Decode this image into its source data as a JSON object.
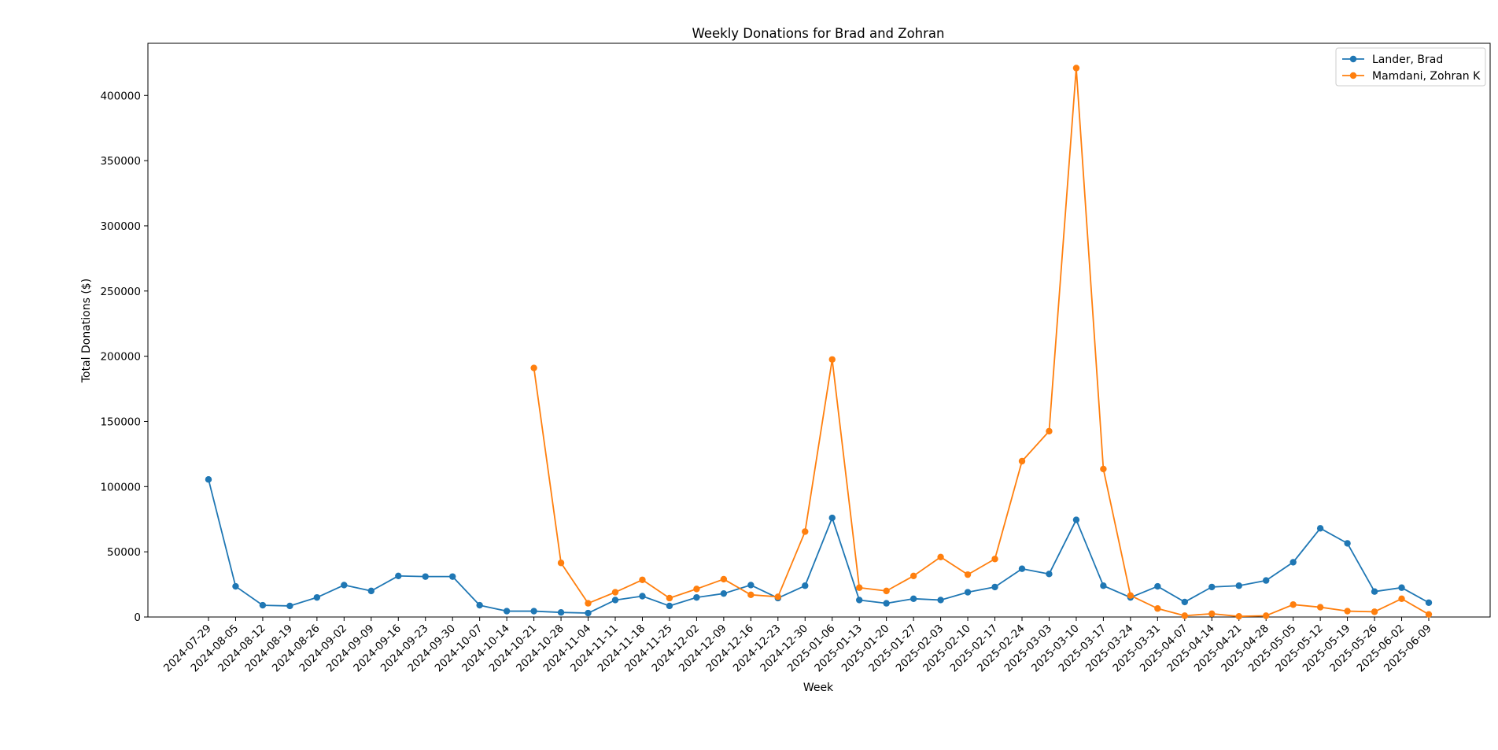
{
  "chart_data": {
    "type": "line",
    "title": "Weekly Donations for Brad and Zohran",
    "xlabel": "Week",
    "ylabel": "Total Donations ($)",
    "ylim": [
      0,
      440000
    ],
    "y_ticks": [
      0,
      50000,
      100000,
      150000,
      200000,
      250000,
      300000,
      350000,
      400000
    ],
    "grid": false,
    "legend_position": "top-right",
    "categories": [
      "2024-07-29",
      "2024-08-05",
      "2024-08-12",
      "2024-08-19",
      "2024-08-26",
      "2024-09-02",
      "2024-09-09",
      "2024-09-16",
      "2024-09-23",
      "2024-09-30",
      "2024-10-07",
      "2024-10-14",
      "2024-10-21",
      "2024-10-28",
      "2024-11-04",
      "2024-11-11",
      "2024-11-18",
      "2024-11-25",
      "2024-12-02",
      "2024-12-09",
      "2024-12-16",
      "2024-12-23",
      "2024-12-30",
      "2025-01-06",
      "2025-01-13",
      "2025-01-20",
      "2025-01-27",
      "2025-02-03",
      "2025-02-10",
      "2025-02-17",
      "2025-02-24",
      "2025-03-03",
      "2025-03-10",
      "2025-03-17",
      "2025-03-24",
      "2025-03-31",
      "2025-04-07",
      "2025-04-14",
      "2025-04-21",
      "2025-04-28",
      "2025-05-05",
      "2025-05-12",
      "2025-05-19",
      "2025-05-26",
      "2025-06-02",
      "2025-06-09"
    ],
    "series": [
      {
        "name": "Lander, Brad",
        "color": "#1f77b4",
        "values": [
          105500,
          23500,
          9000,
          8500,
          15000,
          24500,
          20000,
          31500,
          31000,
          31000,
          9000,
          4500,
          4500,
          3500,
          3000,
          13000,
          16000,
          8500,
          15000,
          18000,
          24500,
          14500,
          24000,
          76000,
          13000,
          10500,
          14000,
          13000,
          19000,
          23000,
          37000,
          33000,
          74500,
          24000,
          15000,
          23500,
          11500,
          23000,
          24000,
          28000,
          42000,
          68000,
          56500,
          19500,
          22500,
          11000
        ]
      },
      {
        "name": "Mamdani, Zohran K",
        "color": "#ff7f0e",
        "values": [
          null,
          null,
          null,
          null,
          null,
          null,
          null,
          null,
          null,
          null,
          null,
          null,
          191000,
          41500,
          10500,
          19000,
          28500,
          14500,
          21500,
          29000,
          17000,
          15500,
          65500,
          197500,
          22500,
          20000,
          31500,
          46000,
          32500,
          44500,
          119500,
          142500,
          421000,
          113500,
          16500,
          6500,
          1000,
          2500,
          500,
          1000,
          9500,
          7500,
          4500,
          4000,
          14000,
          2000
        ]
      }
    ]
  }
}
